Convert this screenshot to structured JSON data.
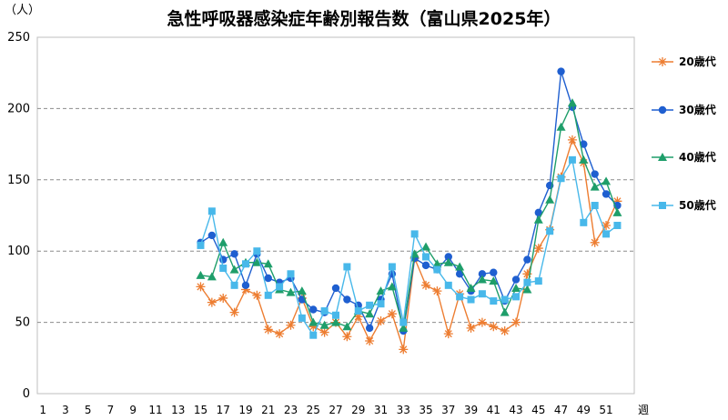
{
  "chart_data": {
    "type": "line",
    "title": "急性呼吸器感染症年齢別報告数（富山県2025年）",
    "ylabel": "（人）",
    "xlabel": "週",
    "ylim": [
      0,
      250
    ],
    "yticks": [
      0,
      50,
      100,
      150,
      200,
      250
    ],
    "xlim": [
      1,
      53
    ],
    "xtick_labels": [
      "1",
      "3",
      "5",
      "7",
      "9",
      "11",
      "13",
      "15",
      "17",
      "19",
      "21",
      "23",
      "25",
      "27",
      "29",
      "31",
      "33",
      "35",
      "37",
      "39",
      "41",
      "43",
      "45",
      "47",
      "49",
      "51"
    ],
    "grid": "horizontal dashed",
    "legend_position": "right",
    "series": [
      {
        "name": "20歳代",
        "color": "#ED7D31",
        "marker": "asterisk",
        "x": [
          15,
          16,
          17,
          18,
          19,
          20,
          21,
          22,
          23,
          24,
          25,
          26,
          27,
          28,
          29,
          30,
          31,
          32,
          33,
          34,
          35,
          36,
          37,
          38,
          39,
          40,
          41,
          42,
          43,
          44,
          45,
          46,
          47,
          48,
          49,
          50,
          51,
          52
        ],
        "values": [
          75,
          64,
          67,
          57,
          73,
          69,
          45,
          42,
          48,
          67,
          47,
          43,
          50,
          40,
          54,
          37,
          51,
          56,
          31,
          95,
          76,
          72,
          42,
          70,
          46,
          50,
          47,
          44,
          50,
          84,
          102,
          115,
          152,
          178,
          162,
          106,
          118,
          135
        ]
      },
      {
        "name": "30歳代",
        "color": "#1F5FD0",
        "marker": "circle",
        "x": [
          15,
          16,
          17,
          18,
          19,
          20,
          21,
          22,
          23,
          24,
          25,
          26,
          27,
          28,
          29,
          30,
          31,
          32,
          33,
          34,
          35,
          36,
          37,
          38,
          39,
          40,
          41,
          42,
          43,
          44,
          45,
          46,
          47,
          48,
          49,
          50,
          51,
          52
        ],
        "values": [
          106,
          111,
          94,
          98,
          76,
          98,
          81,
          78,
          81,
          66,
          59,
          57,
          74,
          66,
          62,
          46,
          66,
          84,
          44,
          95,
          90,
          87,
          96,
          84,
          72,
          84,
          85,
          65,
          80,
          94,
          127,
          146,
          226,
          201,
          175,
          154,
          140,
          132
        ]
      },
      {
        "name": "40歳代",
        "color": "#1E9E6A",
        "marker": "triangle",
        "x": [
          15,
          16,
          17,
          18,
          19,
          20,
          21,
          22,
          23,
          24,
          25,
          26,
          27,
          28,
          29,
          30,
          31,
          32,
          33,
          34,
          35,
          36,
          37,
          38,
          39,
          40,
          41,
          42,
          43,
          44,
          45,
          46,
          47,
          48,
          49,
          50,
          51,
          52
        ],
        "values": [
          83,
          82,
          106,
          87,
          92,
          92,
          91,
          73,
          71,
          72,
          50,
          48,
          50,
          47,
          58,
          56,
          72,
          75,
          46,
          98,
          103,
          91,
          92,
          89,
          74,
          80,
          79,
          57,
          74,
          73,
          122,
          136,
          187,
          204,
          164,
          145,
          149,
          127
        ]
      },
      {
        "name": "50歳代",
        "color": "#48B8EA",
        "marker": "square",
        "x": [
          15,
          16,
          17,
          18,
          19,
          20,
          21,
          22,
          23,
          24,
          25,
          26,
          27,
          28,
          29,
          30,
          31,
          32,
          33,
          34,
          35,
          36,
          37,
          38,
          39,
          40,
          41,
          42,
          43,
          44,
          45,
          46,
          47,
          48,
          49,
          50,
          51,
          52
        ],
        "values": [
          104,
          128,
          88,
          76,
          91,
          100,
          69,
          75,
          84,
          53,
          41,
          58,
          55,
          89,
          58,
          62,
          63,
          89,
          50,
          112,
          96,
          87,
          76,
          68,
          66,
          70,
          65,
          66,
          68,
          78,
          79,
          114,
          151,
          164,
          120,
          132,
          112,
          118
        ]
      }
    ]
  }
}
